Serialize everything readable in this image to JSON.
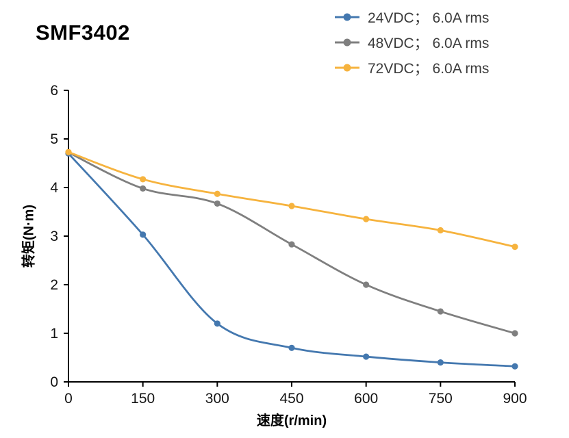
{
  "title": "SMF3402",
  "legend": {
    "items": [
      {
        "label": "24VDC； 6.0A rms",
        "color": "#4478af"
      },
      {
        "label": "48VDC； 6.0A rms",
        "color": "#7f7f7f"
      },
      {
        "label": "72VDC； 6.0A rms",
        "color": "#f6b33e"
      }
    ]
  },
  "chart_data": {
    "type": "line",
    "title": "SMF3402",
    "x": [
      0,
      150,
      300,
      450,
      600,
      750,
      900
    ],
    "series": [
      {
        "name": "24VDC； 6.0A rms",
        "color": "#4478af",
        "values": [
          4.7,
          3.03,
          1.2,
          0.7,
          0.52,
          0.4,
          0.32
        ]
      },
      {
        "name": "48VDC； 6.0A rms",
        "color": "#7f7f7f",
        "values": [
          4.72,
          3.98,
          3.67,
          2.83,
          2.0,
          1.45,
          1.0
        ]
      },
      {
        "name": "72VDC； 6.0A rms",
        "color": "#f6b33e",
        "values": [
          4.73,
          4.17,
          3.87,
          3.62,
          3.35,
          3.12,
          2.78
        ]
      }
    ],
    "xlabel": "速度(r/min)",
    "ylabel": "转矩(N·m)",
    "xlim": [
      0,
      900
    ],
    "ylim": [
      0,
      6
    ],
    "xticks": [
      0,
      150,
      300,
      450,
      600,
      750,
      900
    ],
    "yticks": [
      0,
      1,
      2,
      3,
      4,
      5,
      6
    ],
    "grid": false,
    "legend_position": "top-right",
    "marker": "circle"
  }
}
